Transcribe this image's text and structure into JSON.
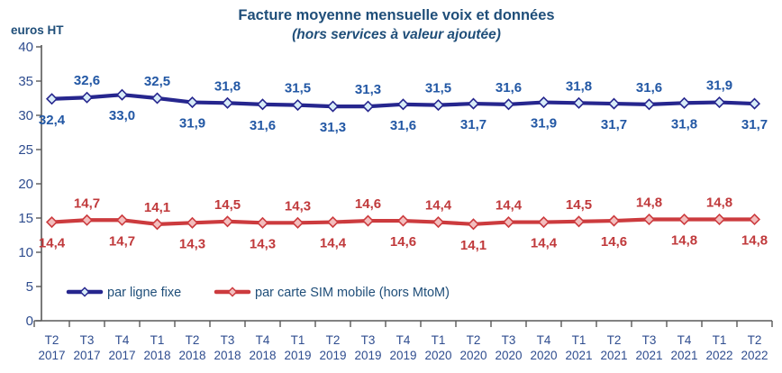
{
  "header": {
    "title": "Facture moyenne mensuelle voix et données",
    "subtitle": "(hors services à valeur ajoutée)",
    "y_axis_unit": "euros HT"
  },
  "colors": {
    "title_text": "#1f4e79",
    "axis_text": "#2f4d8f",
    "axis_line": "#595959",
    "legend_text": "#1f4e79"
  },
  "chart_data": {
    "type": "line",
    "title": "Facture moyenne mensuelle voix et données",
    "subtitle": "(hors services à valeur ajoutée)",
    "ylabel": "euros HT",
    "xlabel": "",
    "ylim": [
      0,
      40
    ],
    "yticks": [
      0,
      5,
      10,
      15,
      20,
      25,
      30,
      35,
      40
    ],
    "grid": false,
    "legend_position": "bottom-left-inside",
    "decimal_separator": ",",
    "label_placement": "alternating-below-above",
    "categories": [
      {
        "quarter": "T2",
        "year": "2017"
      },
      {
        "quarter": "T3",
        "year": "2017"
      },
      {
        "quarter": "T4",
        "year": "2017"
      },
      {
        "quarter": "T1",
        "year": "2018"
      },
      {
        "quarter": "T2",
        "year": "2018"
      },
      {
        "quarter": "T3",
        "year": "2018"
      },
      {
        "quarter": "T4",
        "year": "2018"
      },
      {
        "quarter": "T1",
        "year": "2019"
      },
      {
        "quarter": "T2",
        "year": "2019"
      },
      {
        "quarter": "T3",
        "year": "2019"
      },
      {
        "quarter": "T4",
        "year": "2019"
      },
      {
        "quarter": "T1",
        "year": "2020"
      },
      {
        "quarter": "T2",
        "year": "2020"
      },
      {
        "quarter": "T3",
        "year": "2020"
      },
      {
        "quarter": "T4",
        "year": "2020"
      },
      {
        "quarter": "T1",
        "year": "2021"
      },
      {
        "quarter": "T2",
        "year": "2021"
      },
      {
        "quarter": "T3",
        "year": "2021"
      },
      {
        "quarter": "T4",
        "year": "2021"
      },
      {
        "quarter": "T1",
        "year": "2022"
      },
      {
        "quarter": "T2",
        "year": "2022"
      }
    ],
    "series": [
      {
        "name": "par ligne fixe",
        "marker": "diamond",
        "line_color": "#26268e",
        "marker_fill": "#d8ecf8",
        "label_color": "#2257a4",
        "values": [
          32.4,
          32.6,
          33.0,
          32.5,
          31.9,
          31.8,
          31.6,
          31.5,
          31.3,
          31.3,
          31.6,
          31.5,
          31.7,
          31.6,
          31.9,
          31.8,
          31.7,
          31.6,
          31.8,
          31.9,
          31.7
        ]
      },
      {
        "name": "par carte SIM mobile (hors MtoM)",
        "marker": "diamond",
        "line_color": "#cc3b3e",
        "marker_fill": "#f3bebe",
        "label_color": "#c0393b",
        "values": [
          14.4,
          14.7,
          14.7,
          14.1,
          14.3,
          14.5,
          14.3,
          14.3,
          14.4,
          14.6,
          14.6,
          14.4,
          14.1,
          14.4,
          14.4,
          14.5,
          14.6,
          14.8,
          14.8,
          14.8,
          14.8
        ]
      }
    ]
  }
}
